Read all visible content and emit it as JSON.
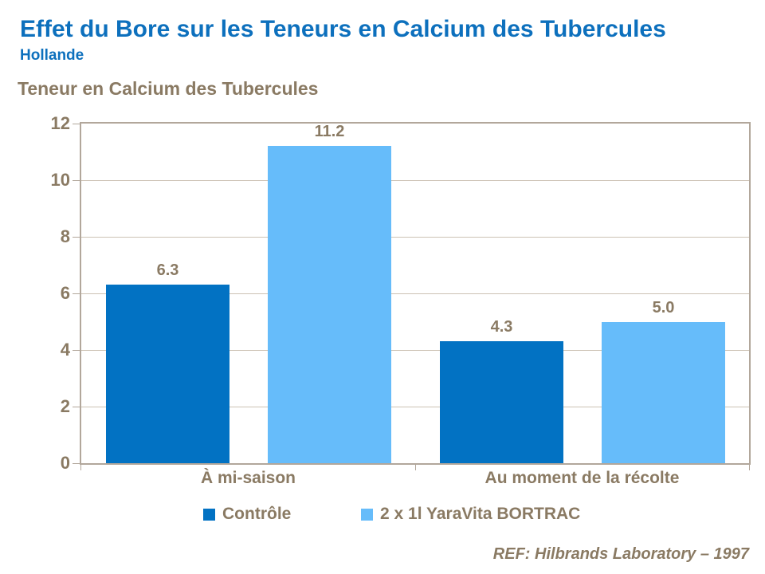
{
  "header": {
    "title": "Effet du Bore sur les Teneurs en Calcium des Tubercules",
    "subtitle": "Hollande"
  },
  "chart_title": "Teneur en Calcium des Tubercules",
  "chart_data": {
    "type": "bar",
    "categories": [
      "À mi-saison",
      "Au moment de la récolte"
    ],
    "series": [
      {
        "name": "Contrôle",
        "color": "#0272C3",
        "values": [
          6.3,
          4.3
        ]
      },
      {
        "name": "2 x 1l YaraVita BORTRAC",
        "color": "#66BCFA",
        "values": [
          11.2,
          5.0
        ]
      }
    ],
    "title": "Teneur en Calcium des Tubercules",
    "xlabel": "",
    "ylabel": "",
    "ylim": [
      0,
      12
    ],
    "yticks": [
      0,
      2,
      4,
      6,
      8,
      10,
      12
    ],
    "grid": true,
    "legend_position": "bottom",
    "data_labels": [
      "6.3",
      "11.2",
      "4.3",
      "5.0"
    ],
    "data_label_decimals": 1
  },
  "footer": {
    "reference": "REF: Hilbrands Laboratory – 1997"
  },
  "colors": {
    "title_blue": "#0D70BD",
    "series_controle": "#0272C3",
    "series_bortrac": "#66BCFA",
    "text_brown": "#8A7A63",
    "gridline": "#CCC2B4",
    "axis_border": "#B2A79B"
  }
}
